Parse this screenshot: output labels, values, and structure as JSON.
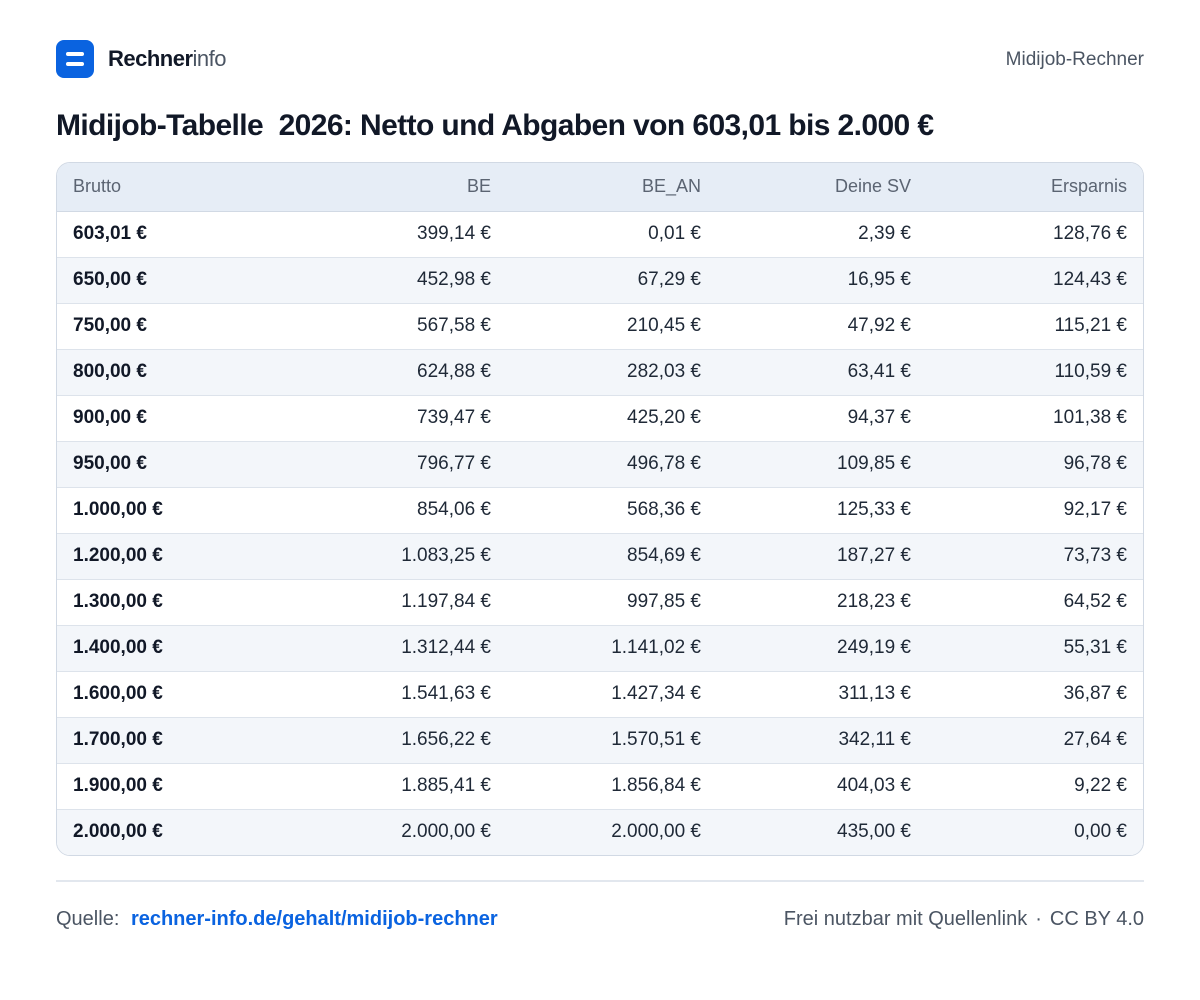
{
  "header": {
    "brand_bold": "Rechner",
    "brand_light": "info",
    "right_label": "Midijob-Rechner"
  },
  "title": "Midijob-Tabelle  2026: Netto und Abgaben von 603,01 bis 2.000 €",
  "table": {
    "columns": [
      "Brutto",
      "BE",
      "BE_AN",
      "Deine SV",
      "Ersparnis"
    ],
    "rows": [
      [
        "603,01 €",
        "399,14 €",
        "0,01 €",
        "2,39 €",
        "128,76 €"
      ],
      [
        "650,00 €",
        "452,98 €",
        "67,29 €",
        "16,95 €",
        "124,43 €"
      ],
      [
        "750,00 €",
        "567,58 €",
        "210,45 €",
        "47,92 €",
        "115,21 €"
      ],
      [
        "800,00 €",
        "624,88 €",
        "282,03 €",
        "63,41 €",
        "110,59 €"
      ],
      [
        "900,00 €",
        "739,47 €",
        "425,20 €",
        "94,37 €",
        "101,38 €"
      ],
      [
        "950,00 €",
        "796,77 €",
        "496,78 €",
        "109,85 €",
        "96,78 €"
      ],
      [
        "1.000,00 €",
        "854,06 €",
        "568,36 €",
        "125,33 €",
        "92,17 €"
      ],
      [
        "1.200,00 €",
        "1.083,25 €",
        "854,69 €",
        "187,27 €",
        "73,73 €"
      ],
      [
        "1.300,00 €",
        "1.197,84 €",
        "997,85 €",
        "218,23 €",
        "64,52 €"
      ],
      [
        "1.400,00 €",
        "1.312,44 €",
        "1.141,02 €",
        "249,19 €",
        "55,31 €"
      ],
      [
        "1.600,00 €",
        "1.541,63 €",
        "1.427,34 €",
        "311,13 €",
        "36,87 €"
      ],
      [
        "1.700,00 €",
        "1.656,22 €",
        "1.570,51 €",
        "342,11 €",
        "27,64 €"
      ],
      [
        "1.900,00 €",
        "1.885,41 €",
        "1.856,84 €",
        "404,03 €",
        "9,22 €"
      ],
      [
        "2.000,00 €",
        "2.000,00 €",
        "2.000,00 €",
        "435,00 €",
        "0,00 €"
      ]
    ]
  },
  "footer": {
    "source_label": "Quelle:",
    "source_link": "rechner-info.de/gehalt/midijob-rechner",
    "license_text": "Frei nutzbar mit Quellenlink",
    "separator": "·",
    "license": "CC BY 4.0"
  },
  "colors": {
    "accent": "#0a63e0",
    "header_bg": "#e6edf6",
    "stripe_bg": "#f3f6fa"
  }
}
